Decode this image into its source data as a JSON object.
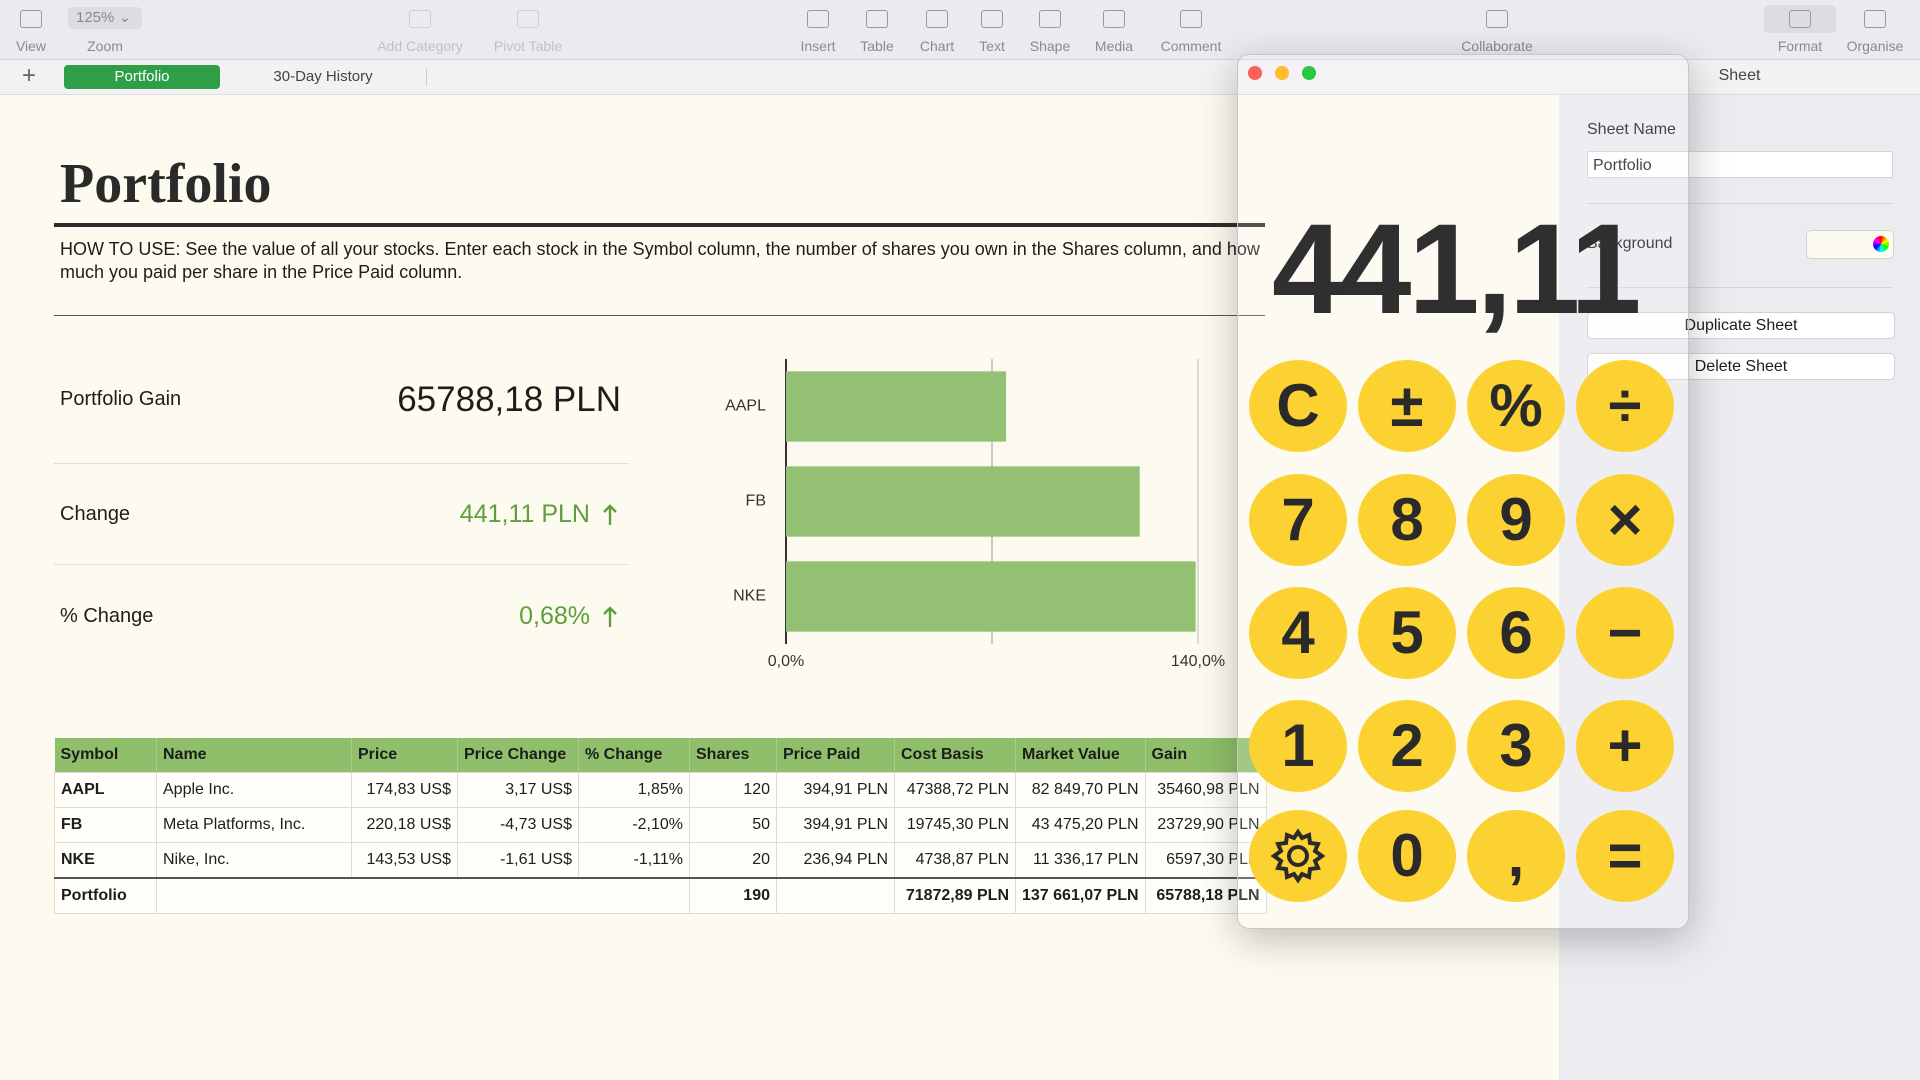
{
  "toolbar": {
    "zoom": "125%",
    "items": [
      "View",
      "Zoom",
      "Add Category",
      "Pivot Table",
      "Insert",
      "Table",
      "Chart",
      "Text",
      "Shape",
      "Media",
      "Comment",
      "Collaborate",
      "Format",
      "Organise"
    ]
  },
  "tabs": [
    "Portfolio",
    "30-Day History"
  ],
  "sheet": {
    "title": "Portfolio",
    "instructions": "HOW TO USE: See the value of all your stocks. Enter each stock in the Symbol column, the number of shares you own in the Shares column, and how much you paid per share in the Price Paid column.",
    "metrics": [
      {
        "label": "Portfolio Gain",
        "value": "65788,18 PLN"
      },
      {
        "label": "Change",
        "value": "441,11 PLN"
      },
      {
        "label": "% Change",
        "value": "0,68%"
      }
    ]
  },
  "chart": {
    "type": "bar",
    "orientation": "horizontal",
    "categories": [
      "AAPL",
      "FB",
      "NKE"
    ],
    "values": [
      74.8,
      120.2,
      139.2
    ],
    "color": "#93c072",
    "xlim": [
      0,
      140
    ],
    "xticks": [
      {
        "value": 0,
        "label": "0,0%"
      },
      {
        "value": 140,
        "label": "140,0%"
      }
    ],
    "grid_values": [
      70
    ]
  },
  "table": {
    "header": [
      "Symbol",
      "Name",
      "Price",
      "Price Change",
      "% Change",
      "Shares",
      "Price Paid",
      "Cost Basis",
      "Market Value",
      "Gain"
    ],
    "rows": [
      [
        "AAPL",
        "Apple Inc.",
        "174,83 US$",
        "3,17 US$",
        "1,85%",
        "120",
        "394,91 PLN",
        "47388,72 PLN",
        "82 849,70 PLN",
        "35460,98 PLN"
      ],
      [
        "FB",
        "Meta Platforms, Inc.",
        "220,18 US$",
        "-4,73 US$",
        "-2,10%",
        "50",
        "394,91 PLN",
        "19745,30 PLN",
        "43 475,20 PLN",
        "23729,90 PLN"
      ],
      [
        "NKE",
        "Nike, Inc.",
        "143,53 US$",
        "-1,61 US$",
        "-1,11%",
        "20",
        "236,94 PLN",
        "4738,87 PLN",
        "11 336,17 PLN",
        "6597,30 PLN"
      ]
    ],
    "footer": {
      "label": "Portfolio",
      "shares": "190",
      "cost_basis": "71872,89 PLN",
      "market_value": "137 661,07 PLN",
      "gain": "65788,18 PLN"
    }
  },
  "calculator": {
    "display": "441,11",
    "buttons": [
      "C",
      "±",
      "%",
      "÷",
      "7",
      "8",
      "9",
      "×",
      "4",
      "5",
      "6",
      "−",
      "1",
      "2",
      "3",
      "+",
      "0",
      ",",
      "="
    ]
  },
  "sidebar": {
    "tab": "Sheet",
    "sheet_name_label": "Sheet Name",
    "sheet_name": "Portfolio",
    "background_label": "Background",
    "buttons": [
      "Duplicate Sheet",
      "Delete Sheet"
    ]
  }
}
